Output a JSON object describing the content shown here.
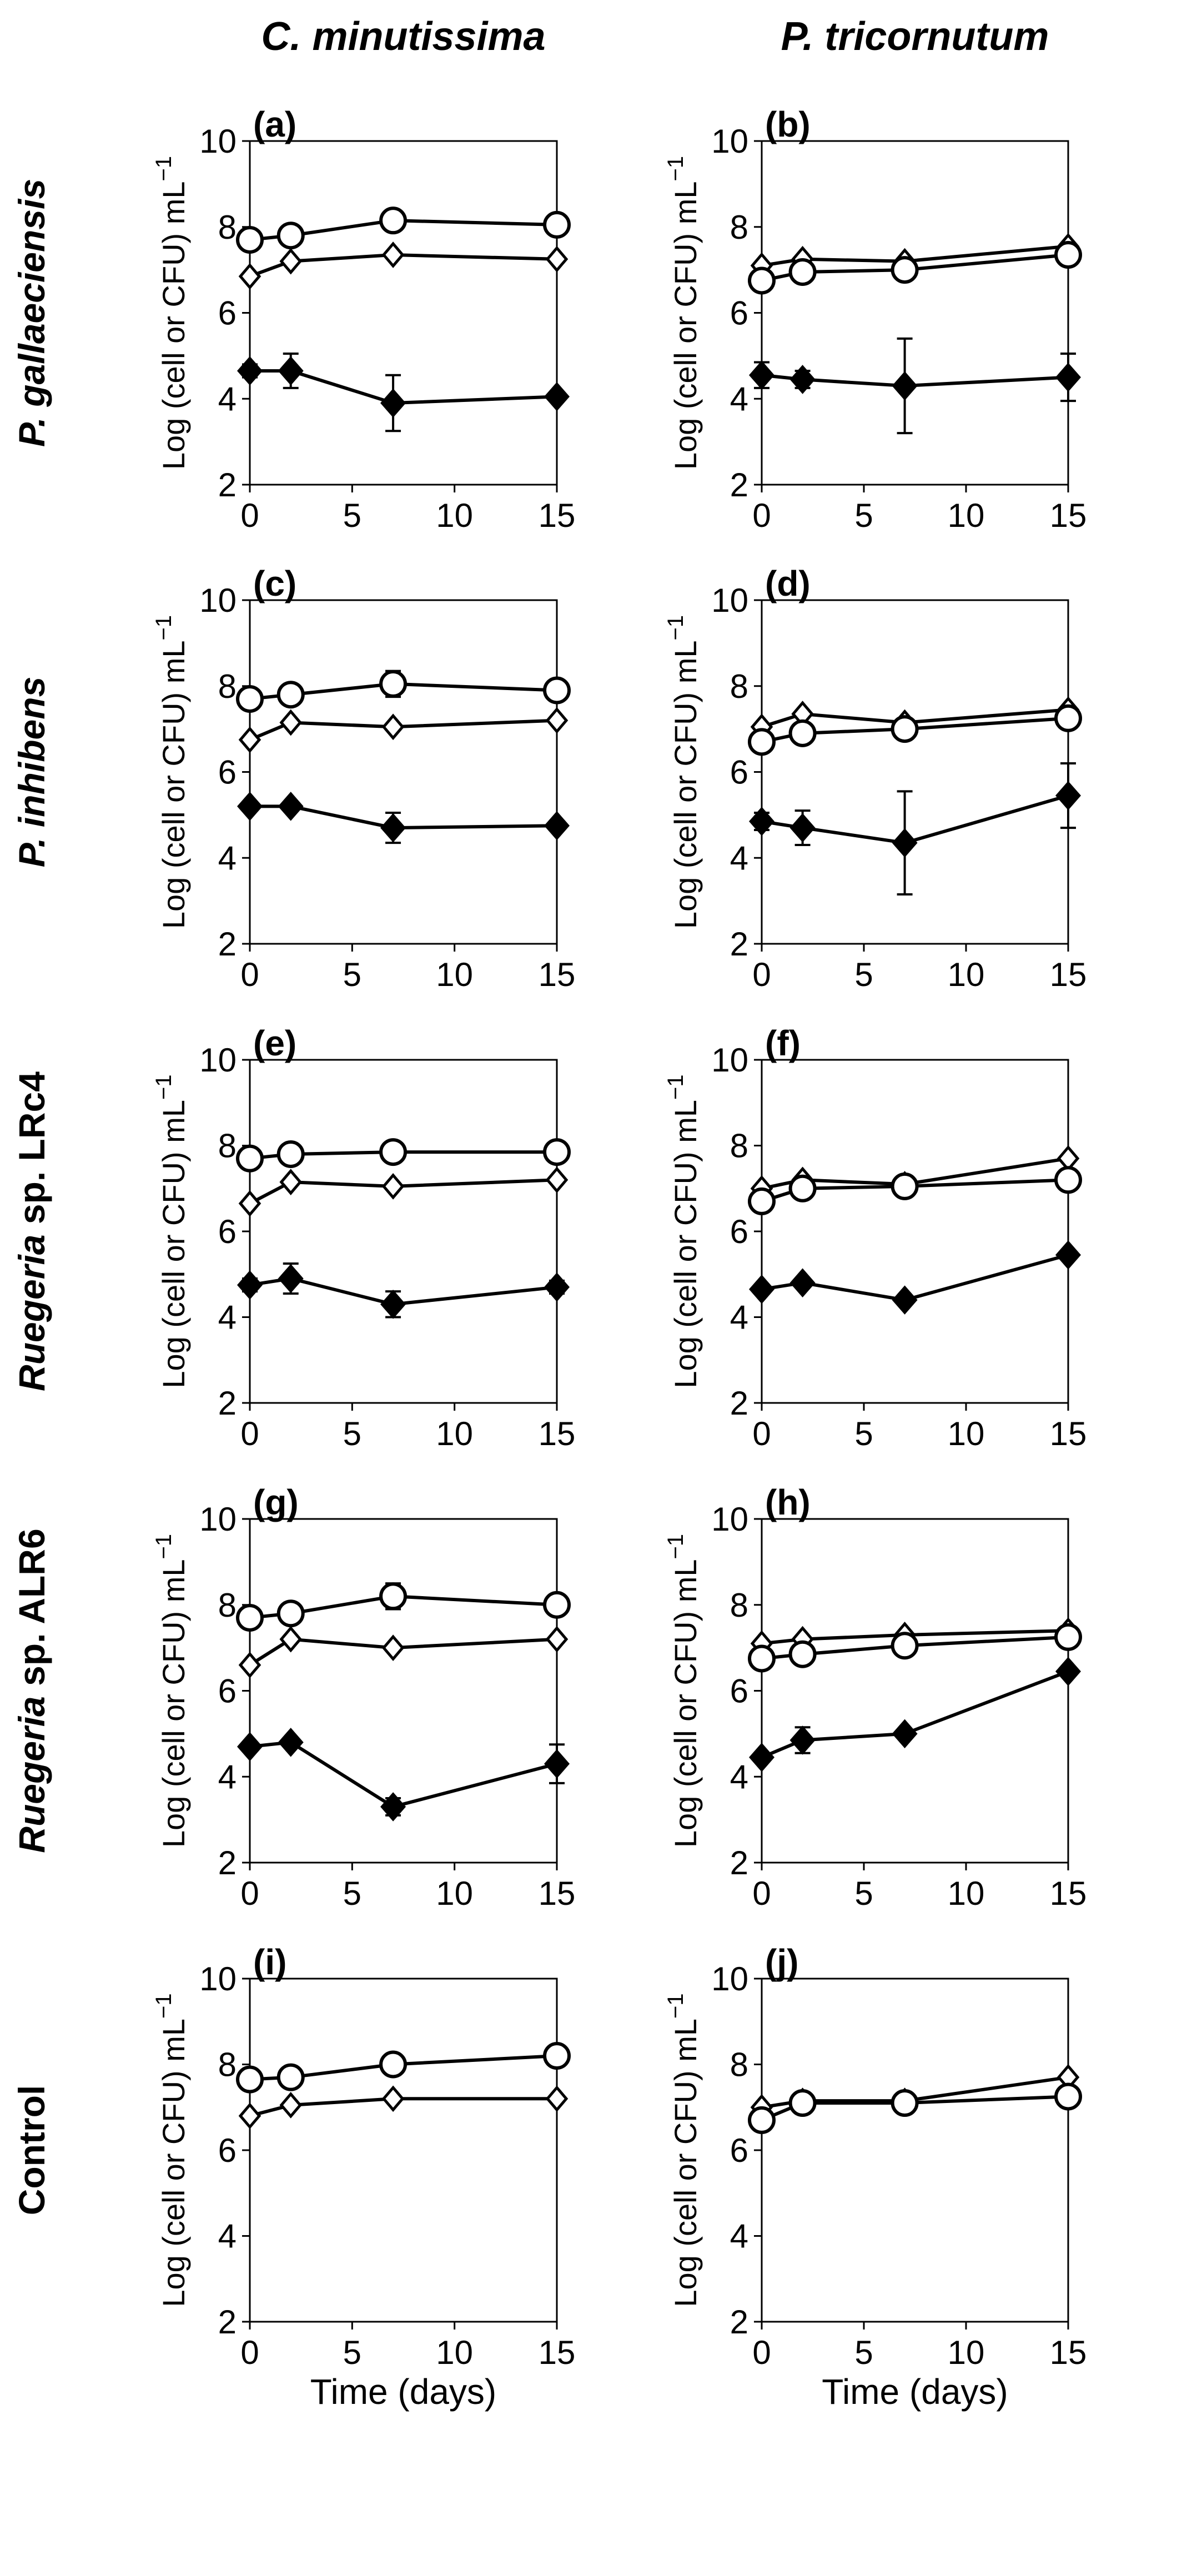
{
  "column_titles": [
    "C. minutissima",
    "P. tricornutum"
  ],
  "row_titles": [
    [
      {
        "t": "P. gallaeciensis",
        "i": true
      }
    ],
    [
      {
        "t": "P. inhibens",
        "i": true
      }
    ],
    [
      {
        "t": "Ruegeria",
        "i": true
      },
      {
        "t": " sp. LRc4",
        "i": false
      }
    ],
    [
      {
        "t": "Ruegeria",
        "i": true
      },
      {
        "t": " sp. ALR6",
        "i": false
      }
    ],
    [
      {
        "t": "Control",
        "i": false
      }
    ]
  ],
  "y_axis_label": "Log (cell or CFU) mL",
  "y_axis_label_sup": "−1",
  "x_axis_label": "Time (days)",
  "colors": {
    "line": "#000000",
    "open_fill": "#ffffff",
    "filled": "#000000"
  },
  "markers": {
    "circle": "open-circle",
    "diamond": "open-diamond",
    "filled": "filled-diamond"
  },
  "chart_data": [
    {
      "panel": "(a)",
      "type": "scatter",
      "x": [
        0,
        2,
        7,
        15
      ],
      "xlim": [
        0,
        15
      ],
      "ylim": [
        2,
        10
      ],
      "xticks": [
        0,
        5,
        10,
        15
      ],
      "yticks": [
        2,
        4,
        6,
        8,
        10
      ],
      "series": [
        {
          "marker": "circle",
          "values": [
            7.7,
            7.8,
            8.15,
            8.05
          ],
          "errors": [
            0.1,
            0.1,
            0.1,
            0.1
          ]
        },
        {
          "marker": "diamond",
          "values": [
            6.85,
            7.2,
            7.35,
            7.25
          ],
          "errors": [
            0.1,
            0.1,
            0.1,
            0.1
          ]
        },
        {
          "marker": "filled",
          "values": [
            4.65,
            4.65,
            3.9,
            4.05
          ],
          "errors": [
            0.15,
            0.4,
            0.65,
            0.1
          ]
        }
      ]
    },
    {
      "panel": "(b)",
      "type": "scatter",
      "x": [
        0,
        2,
        7,
        15
      ],
      "xlim": [
        0,
        15
      ],
      "ylim": [
        2,
        10
      ],
      "xticks": [
        0,
        5,
        10,
        15
      ],
      "yticks": [
        2,
        4,
        6,
        8,
        10
      ],
      "series": [
        {
          "marker": "diamond",
          "values": [
            7.1,
            7.25,
            7.2,
            7.55
          ],
          "errors": [
            0.1,
            0.1,
            0.1,
            0.1
          ]
        },
        {
          "marker": "circle",
          "values": [
            6.75,
            6.95,
            7.0,
            7.35
          ],
          "errors": [
            0.1,
            0.1,
            0.1,
            0.1
          ]
        },
        {
          "marker": "filled",
          "values": [
            4.55,
            4.45,
            4.3,
            4.5
          ],
          "errors": [
            0.3,
            0.2,
            1.1,
            0.55
          ]
        }
      ]
    },
    {
      "panel": "(c)",
      "type": "scatter",
      "x": [
        0,
        2,
        7,
        15
      ],
      "xlim": [
        0,
        15
      ],
      "ylim": [
        2,
        10
      ],
      "xticks": [
        0,
        5,
        10,
        15
      ],
      "yticks": [
        2,
        4,
        6,
        8,
        10
      ],
      "series": [
        {
          "marker": "circle",
          "values": [
            7.7,
            7.8,
            8.05,
            7.9
          ],
          "errors": [
            0.1,
            0.1,
            0.3,
            0.1
          ]
        },
        {
          "marker": "diamond",
          "values": [
            6.75,
            7.15,
            7.05,
            7.2
          ],
          "errors": [
            0.1,
            0.1,
            0.1,
            0.1
          ]
        },
        {
          "marker": "filled",
          "values": [
            5.2,
            5.2,
            4.7,
            4.75
          ],
          "errors": [
            0.1,
            0.1,
            0.35,
            0.1
          ]
        }
      ]
    },
    {
      "panel": "(d)",
      "type": "scatter",
      "x": [
        0,
        2,
        7,
        15
      ],
      "xlim": [
        0,
        15
      ],
      "ylim": [
        2,
        10
      ],
      "xticks": [
        0,
        5,
        10,
        15
      ],
      "yticks": [
        2,
        4,
        6,
        8,
        10
      ],
      "series": [
        {
          "marker": "diamond",
          "values": [
            7.05,
            7.35,
            7.15,
            7.45
          ],
          "errors": [
            0.1,
            0.1,
            0.1,
            0.1
          ]
        },
        {
          "marker": "circle",
          "values": [
            6.7,
            6.9,
            7.0,
            7.25
          ],
          "errors": [
            0.1,
            0.1,
            0.1,
            0.1
          ]
        },
        {
          "marker": "filled",
          "values": [
            4.85,
            4.7,
            4.35,
            5.45
          ],
          "errors": [
            0.2,
            0.4,
            1.2,
            0.75
          ]
        }
      ]
    },
    {
      "panel": "(e)",
      "type": "scatter",
      "x": [
        0,
        2,
        7,
        15
      ],
      "xlim": [
        0,
        15
      ],
      "ylim": [
        2,
        10
      ],
      "xticks": [
        0,
        5,
        10,
        15
      ],
      "yticks": [
        2,
        4,
        6,
        8,
        10
      ],
      "series": [
        {
          "marker": "circle",
          "values": [
            7.7,
            7.8,
            7.85,
            7.85
          ],
          "errors": [
            0.1,
            0.1,
            0.1,
            0.1
          ]
        },
        {
          "marker": "diamond",
          "values": [
            6.65,
            7.15,
            7.05,
            7.2
          ],
          "errors": [
            0.1,
            0.1,
            0.1,
            0.1
          ]
        },
        {
          "marker": "filled",
          "values": [
            4.75,
            4.9,
            4.3,
            4.7
          ],
          "errors": [
            0.15,
            0.35,
            0.3,
            0.15
          ]
        }
      ]
    },
    {
      "panel": "(f)",
      "type": "scatter",
      "x": [
        0,
        2,
        7,
        15
      ],
      "xlim": [
        0,
        15
      ],
      "ylim": [
        2,
        10
      ],
      "xticks": [
        0,
        5,
        10,
        15
      ],
      "yticks": [
        2,
        4,
        6,
        8,
        10
      ],
      "series": [
        {
          "marker": "diamond",
          "values": [
            7.0,
            7.2,
            7.1,
            7.7
          ],
          "errors": [
            0.1,
            0.1,
            0.1,
            0.1
          ]
        },
        {
          "marker": "circle",
          "values": [
            6.7,
            7.0,
            7.05,
            7.2
          ],
          "errors": [
            0.1,
            0.1,
            0.1,
            0.1
          ]
        },
        {
          "marker": "filled",
          "values": [
            4.65,
            4.8,
            4.4,
            5.45
          ],
          "errors": [
            0.1,
            0.1,
            0.1,
            0.1
          ]
        }
      ]
    },
    {
      "panel": "(g)",
      "type": "scatter",
      "x": [
        0,
        2,
        7,
        15
      ],
      "xlim": [
        0,
        15
      ],
      "ylim": [
        2,
        10
      ],
      "xticks": [
        0,
        5,
        10,
        15
      ],
      "yticks": [
        2,
        4,
        6,
        8,
        10
      ],
      "series": [
        {
          "marker": "circle",
          "values": [
            7.7,
            7.8,
            8.2,
            8.0
          ],
          "errors": [
            0.1,
            0.1,
            0.3,
            0.1
          ]
        },
        {
          "marker": "diamond",
          "values": [
            6.6,
            7.2,
            7.0,
            7.2
          ],
          "errors": [
            0.1,
            0.1,
            0.1,
            0.1
          ]
        },
        {
          "marker": "filled",
          "values": [
            4.7,
            4.8,
            3.3,
            4.3
          ],
          "errors": [
            0.1,
            0.1,
            0.2,
            0.45
          ]
        }
      ]
    },
    {
      "panel": "(h)",
      "type": "scatter",
      "x": [
        0,
        2,
        7,
        15
      ],
      "xlim": [
        0,
        15
      ],
      "ylim": [
        2,
        10
      ],
      "xticks": [
        0,
        5,
        10,
        15
      ],
      "yticks": [
        2,
        4,
        6,
        8,
        10
      ],
      "series": [
        {
          "marker": "diamond",
          "values": [
            7.1,
            7.2,
            7.3,
            7.4
          ],
          "errors": [
            0.1,
            0.1,
            0.1,
            0.1
          ]
        },
        {
          "marker": "circle",
          "values": [
            6.75,
            6.85,
            7.05,
            7.25
          ],
          "errors": [
            0.1,
            0.1,
            0.1,
            0.1
          ]
        },
        {
          "marker": "filled",
          "values": [
            4.45,
            4.85,
            5.0,
            6.45
          ],
          "errors": [
            0.1,
            0.3,
            0.1,
            0.1
          ]
        }
      ]
    },
    {
      "panel": "(i)",
      "type": "scatter",
      "x": [
        0,
        2,
        7,
        15
      ],
      "xlim": [
        0,
        15
      ],
      "ylim": [
        2,
        10
      ],
      "xticks": [
        0,
        5,
        10,
        15
      ],
      "yticks": [
        2,
        4,
        6,
        8,
        10
      ],
      "series": [
        {
          "marker": "circle",
          "values": [
            7.65,
            7.7,
            8.0,
            8.2
          ],
          "errors": [
            0.1,
            0.1,
            0.1,
            0.1
          ]
        },
        {
          "marker": "diamond",
          "values": [
            6.8,
            7.05,
            7.2,
            7.2
          ],
          "errors": [
            0.1,
            0.1,
            0.1,
            0.1
          ]
        }
      ]
    },
    {
      "panel": "(j)",
      "type": "scatter",
      "x": [
        0,
        2,
        7,
        15
      ],
      "xlim": [
        0,
        15
      ],
      "ylim": [
        2,
        10
      ],
      "xticks": [
        0,
        5,
        10,
        15
      ],
      "yticks": [
        2,
        4,
        6,
        8,
        10
      ],
      "series": [
        {
          "marker": "diamond",
          "values": [
            7.0,
            7.15,
            7.15,
            7.7
          ],
          "errors": [
            0.1,
            0.1,
            0.1,
            0.1
          ]
        },
        {
          "marker": "circle",
          "values": [
            6.7,
            7.1,
            7.1,
            7.25
          ],
          "errors": [
            0.1,
            0.1,
            0.1,
            0.1
          ]
        }
      ]
    }
  ]
}
